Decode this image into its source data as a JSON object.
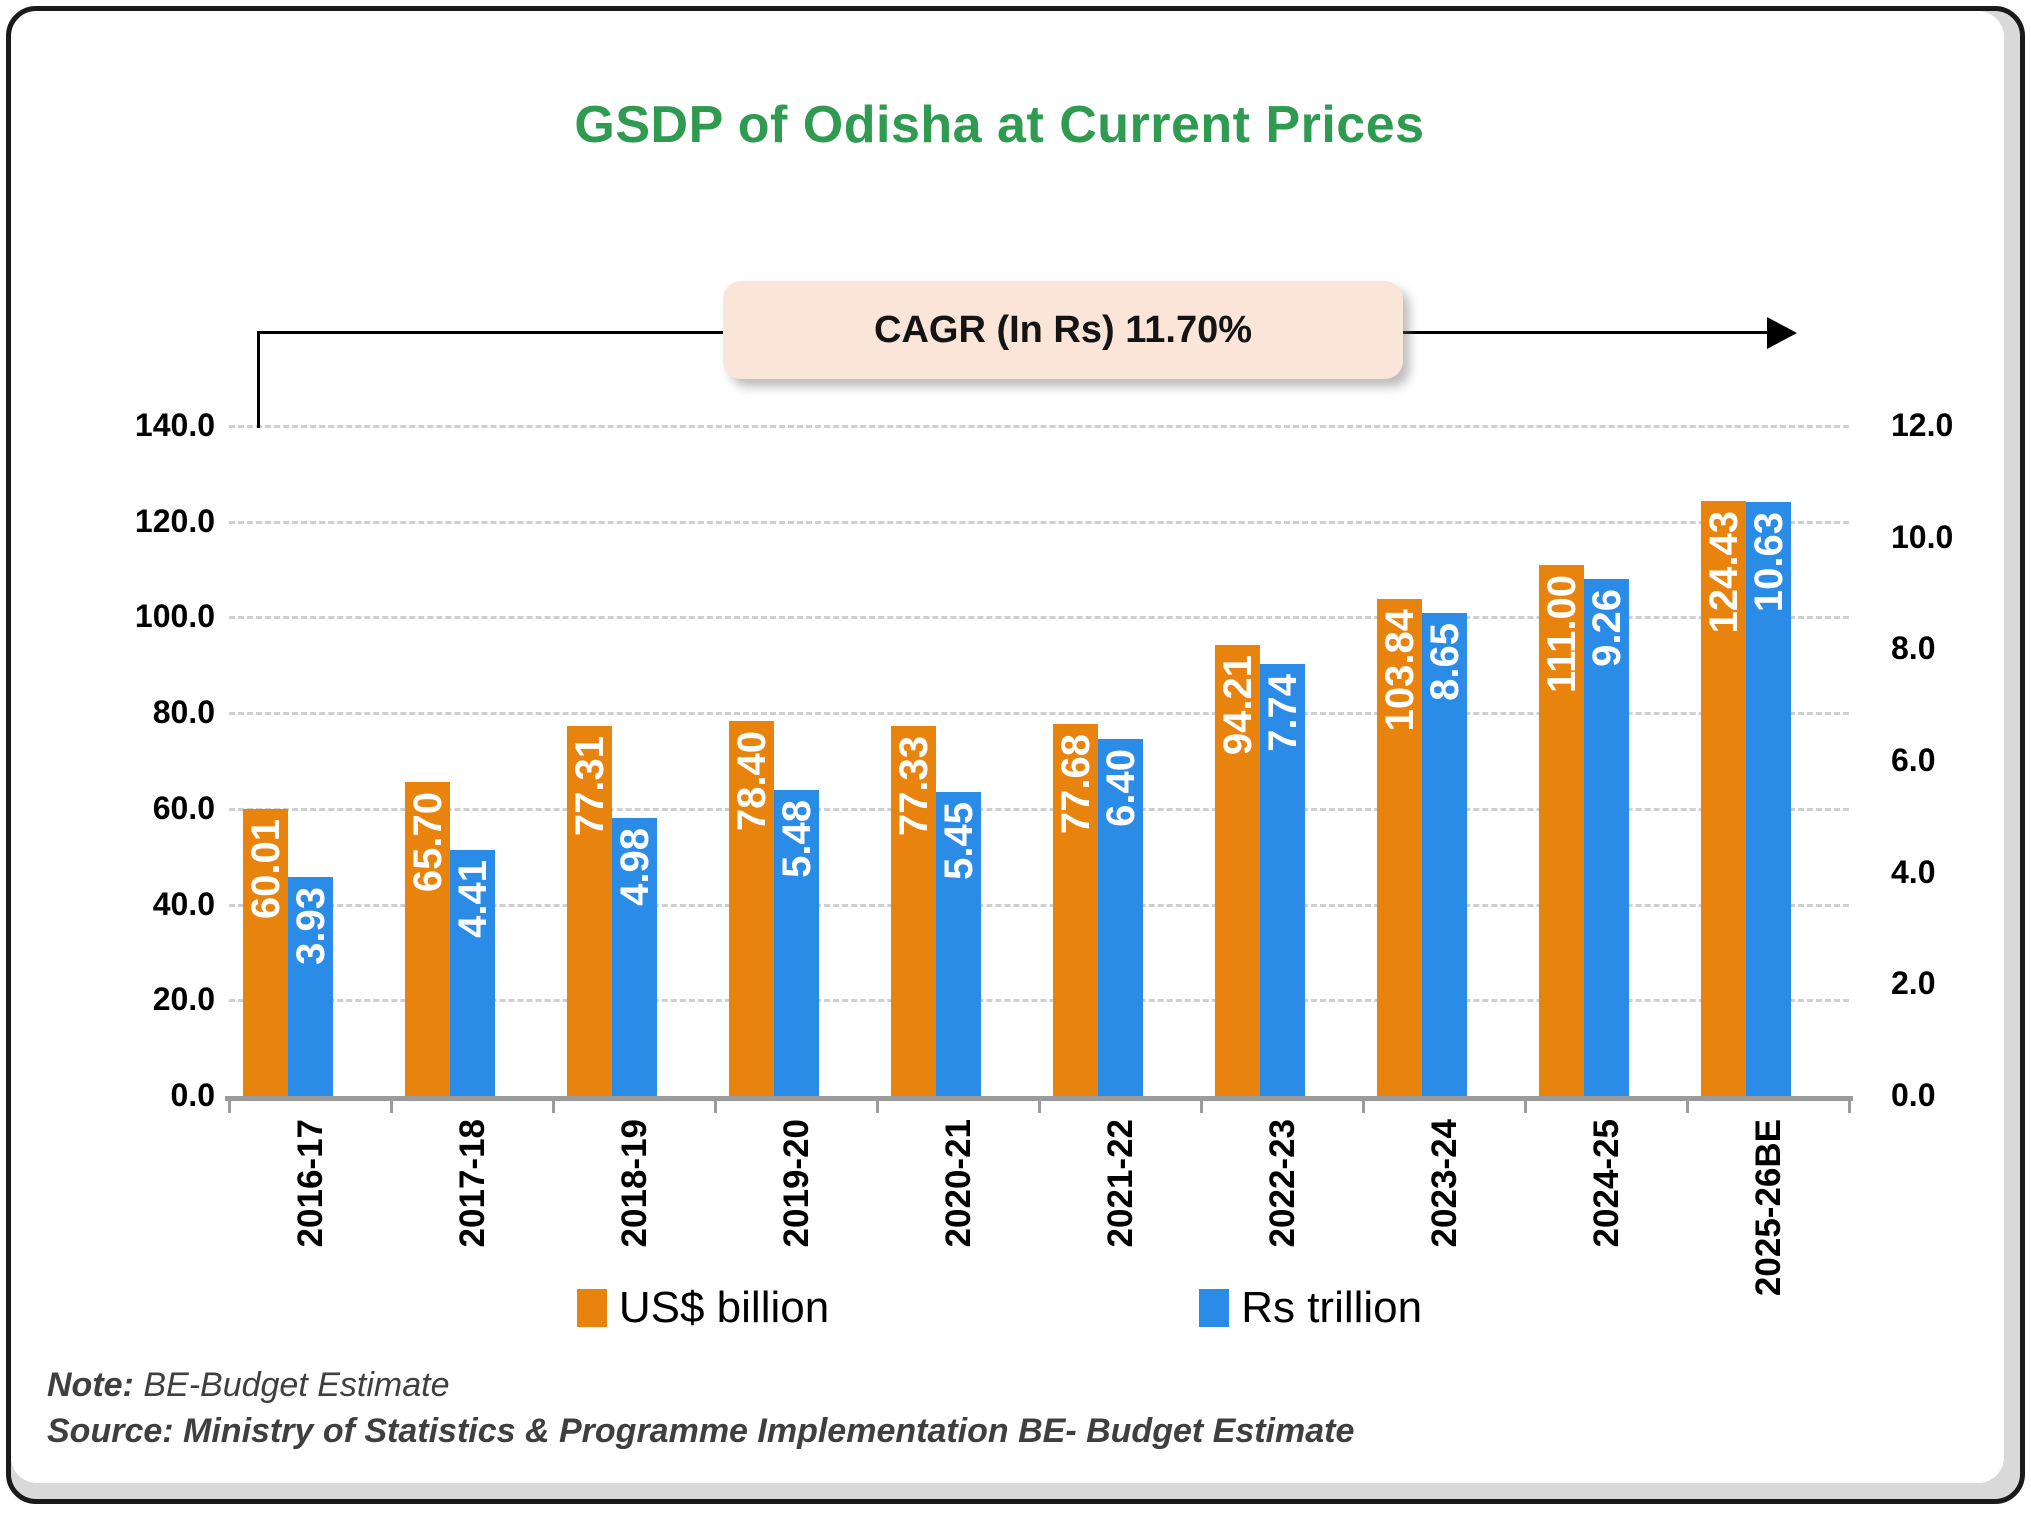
{
  "title": "GSDP of Odisha at Current Prices",
  "annotation": {
    "text": "CAGR (In Rs) 11.70%"
  },
  "colors": {
    "title": "#2E9B50",
    "series_us_billion": "#E8830D",
    "series_rs_trillion": "#2B8CE8",
    "annotation_bg": "#FBE5D8",
    "gridline": "#CFCFCF",
    "axis": "#9B9B9B",
    "bar_value_text": "#FFFFFF",
    "note_text": "#3F3F3F"
  },
  "chart_data": {
    "type": "bar",
    "title": "GSDP of Odisha at Current Prices",
    "categories": [
      "2016-17",
      "2017-18",
      "2018-19",
      "2019-20",
      "2020-21",
      "2021-22",
      "2022-23",
      "2023-24",
      "2024-25",
      "2025-26BE"
    ],
    "series": [
      {
        "name": "US$ billion",
        "axis": "left",
        "color": "#E8830D",
        "values": [
          60.01,
          65.7,
          77.31,
          78.4,
          77.33,
          77.68,
          94.21,
          103.84,
          111.0,
          124.43
        ]
      },
      {
        "name": "Rs trillion",
        "axis": "right",
        "color": "#2B8CE8",
        "values": [
          3.93,
          4.41,
          4.98,
          5.48,
          5.45,
          6.4,
          7.74,
          8.65,
          9.26,
          10.63
        ]
      }
    ],
    "left_axis": {
      "min": 0,
      "max": 140,
      "step": 20,
      "tick_values": [
        0,
        20,
        40,
        60,
        80,
        100,
        120,
        140
      ],
      "tick_labels": [
        "0.0",
        "20.0",
        "40.0",
        "60.0",
        "80.0",
        "100.0",
        "120.0",
        "140.0"
      ]
    },
    "right_axis": {
      "min": 0,
      "max": 12,
      "step": 2,
      "tick_values": [
        0,
        2,
        4,
        6,
        8,
        10,
        12
      ],
      "tick_labels": [
        "0.0",
        "2.0",
        "4.0",
        "6.0",
        "8.0",
        "10.0",
        "12.0"
      ]
    },
    "grid": "horizontal dashed",
    "legend_position": "bottom",
    "annotation": "CAGR (In Rs) 11.70%"
  },
  "notes": {
    "note_label": "Note:",
    "note_text": " BE-Budget Estimate",
    "source_label": "Source:",
    "source_text": " Ministry of Statistics & Programme Implementation BE- Budget Estimate"
  }
}
